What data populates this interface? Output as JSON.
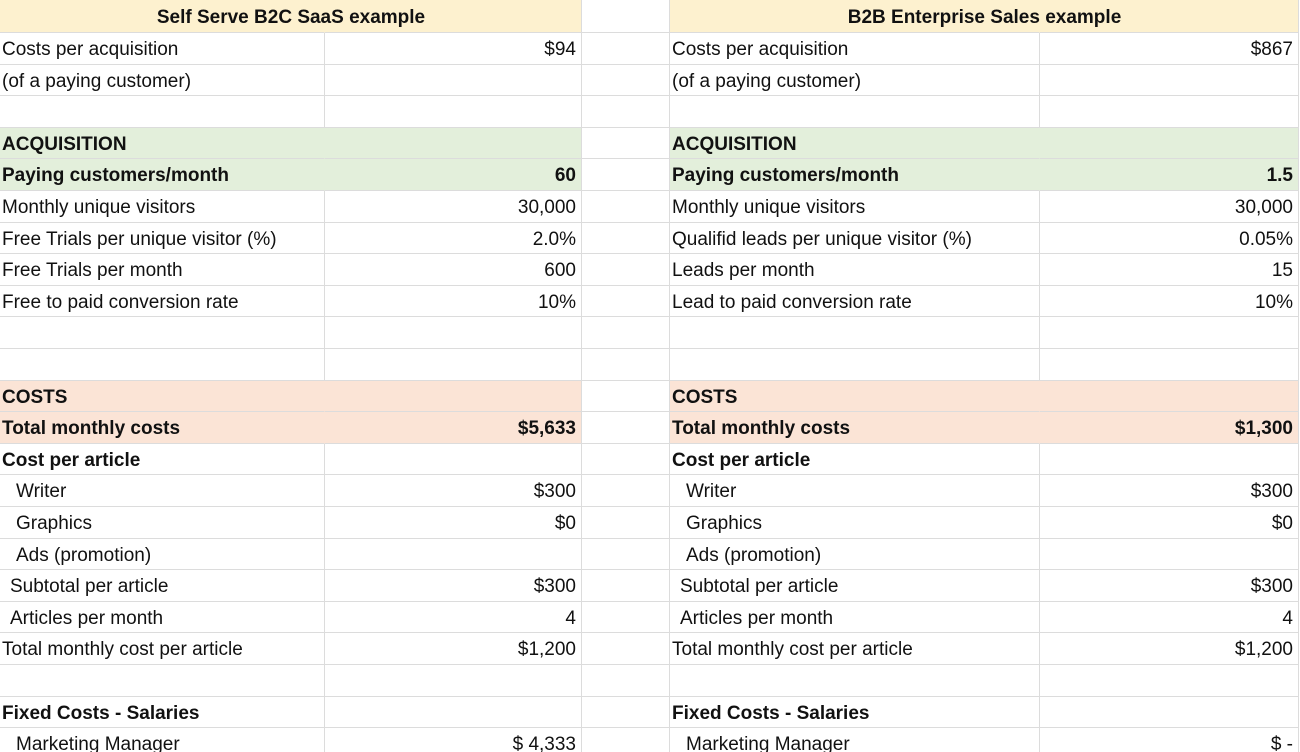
{
  "panels": [
    {
      "title": "Self Serve B2C SaaS example",
      "rows": [
        {
          "label": "Costs per acquisition",
          "value": "$94"
        },
        {
          "label": "(of a paying customer)"
        },
        {
          "label": "ACQUISITION"
        },
        {
          "label": "Paying customers/month",
          "value": "60"
        },
        {
          "label": "Monthly unique visitors",
          "value": "30,000"
        },
        {
          "label": "Free Trials per unique visitor (%)",
          "value": "2.0%"
        },
        {
          "label": "Free Trials per month",
          "value": "600"
        },
        {
          "label": "Free to paid conversion rate",
          "value": "10%"
        },
        {
          "label": "COSTS"
        },
        {
          "label": "Total monthly costs",
          "value": "$5,633"
        },
        {
          "label": "Cost per article"
        },
        {
          "label": "Writer",
          "value": "$300"
        },
        {
          "label": "Graphics",
          "value": "$0"
        },
        {
          "label": "Ads (promotion)"
        },
        {
          "label": "Subtotal per article",
          "value": "$300"
        },
        {
          "label": "Articles per month",
          "value": "4"
        },
        {
          "label": "Total monthly cost per article",
          "value": "$1,200"
        },
        {
          "label": "Fixed Costs - Salaries"
        },
        {
          "label": "Marketing Manager",
          "value": "$ 4,333"
        }
      ]
    },
    {
      "title": "B2B Enterprise Sales example",
      "rows": [
        {
          "label": "Costs per acquisition",
          "value": "$867"
        },
        {
          "label": "(of a paying customer)"
        },
        {
          "label": "ACQUISITION"
        },
        {
          "label": "Paying customers/month",
          "value": "1.5"
        },
        {
          "label": "Monthly unique visitors",
          "value": "30,000"
        },
        {
          "label": "Qualifid leads per unique visitor (%)",
          "value": "0.05%"
        },
        {
          "label": "Leads per month",
          "value": "15"
        },
        {
          "label": "Lead to paid conversion rate",
          "value": "10%"
        },
        {
          "label": "COSTS"
        },
        {
          "label": "Total monthly costs",
          "value": "$1,300"
        },
        {
          "label": "Cost per article"
        },
        {
          "label": "Writer",
          "value": "$300"
        },
        {
          "label": "Graphics",
          "value": "$0"
        },
        {
          "label": "Ads (promotion)"
        },
        {
          "label": "Subtotal per article",
          "value": "$300"
        },
        {
          "label": "Articles per month",
          "value": "4"
        },
        {
          "label": "Total monthly cost per article",
          "value": "$1,200"
        },
        {
          "label": "Fixed Costs - Salaries"
        },
        {
          "label": "Marketing Manager",
          "value": "$ -"
        }
      ]
    }
  ]
}
